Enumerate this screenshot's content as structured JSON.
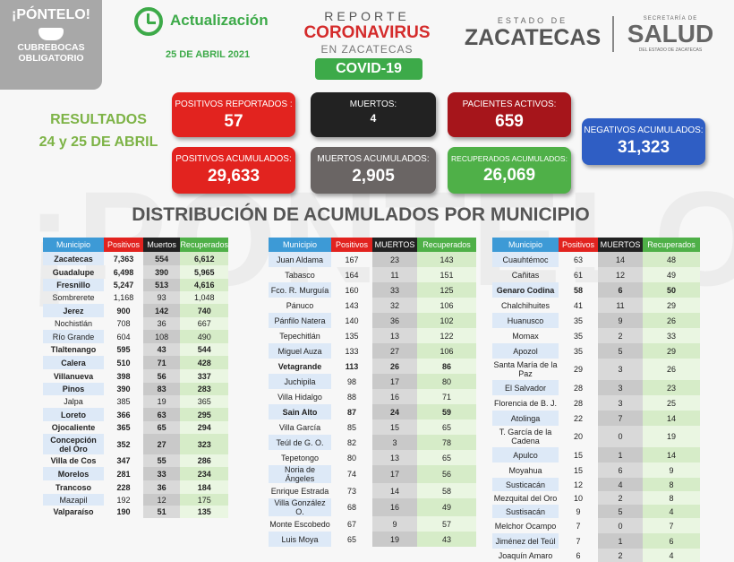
{
  "badge": {
    "line1": "¡PÓNTELO!",
    "line2": "CUBREBOCAS",
    "line3": "OBLIGATORIO"
  },
  "watermark": "¡PÓNTELO!",
  "update": {
    "label": "Actualización",
    "date": "25 DE ABRIL 2021"
  },
  "report": {
    "line1": "REPORTE",
    "line2": "CORONAVIRUS",
    "line3": "EN ZACATECAS",
    "tag": "COVID-19"
  },
  "logos": {
    "estado_top": "ESTADO DE",
    "estado_main": "ZACATECAS",
    "salud_top": "SECRETARÍA DE",
    "salud_main": "SALUD",
    "salud_bottom": "DEL ESTADO DE ZACATECAS"
  },
  "results": {
    "line1": "RESULTADOS",
    "line2": "24 y 25 DE ABRIL"
  },
  "kpis": {
    "positivos_reportados": {
      "label": "POSITIVOS REPORTADOS  :",
      "value": "57",
      "color": "#e2231f"
    },
    "muertos": {
      "label": "MUERTOS:",
      "value": "4",
      "color": "#222222"
    },
    "pacientes_activos": {
      "label": "PACIENTES ACTIVOS:",
      "value": "659",
      "color": "#a6151b"
    },
    "negativos_acumulados": {
      "label": "NEGATIVOS ACUMULADOS:",
      "value": "31,323",
      "color": "#2f5ec4"
    },
    "positivos_acumulados": {
      "label": "POSITIVOS ACUMULADOS:",
      "value": "29,633",
      "color": "#e2231f"
    },
    "muertos_acumulados": {
      "label": "MUERTOS ACUMULADOS:",
      "value": "2,905",
      "color": "#6a6564"
    },
    "recuperados_acumulados": {
      "label": "RECUPERADOS ACUMULADOS:",
      "value": "26,069",
      "color": "#4fb048"
    }
  },
  "section_title": "DISTRIBUCIÓN DE ACUMULADOS POR MUNICIPIO",
  "table_headers": [
    "Municipio",
    "Positivos",
    "Muertos",
    "Recuperados"
  ],
  "table_headers_mid": [
    "Municipio",
    "Positivos",
    "MUERTOS",
    "Recuperados"
  ],
  "table_headers_right": [
    "Municipio",
    "Positivos",
    "MUERTOS",
    "Recuperados"
  ],
  "table_left": [
    [
      "Zacatecas",
      "7,363",
      "554",
      "6,612"
    ],
    [
      "Guadalupe",
      "6,498",
      "390",
      "5,965"
    ],
    [
      "Fresnillo",
      "5,247",
      "513",
      "4,616"
    ],
    [
      "Sombrerete",
      "1,168",
      "93",
      "1,048"
    ],
    [
      "Jerez",
      "900",
      "142",
      "740"
    ],
    [
      "Nochistlán",
      "708",
      "36",
      "667"
    ],
    [
      "Río Grande",
      "604",
      "108",
      "490"
    ],
    [
      "Tlaltenango",
      "595",
      "43",
      "544"
    ],
    [
      "Calera",
      "510",
      "71",
      "428"
    ],
    [
      "Villanueva",
      "398",
      "56",
      "337"
    ],
    [
      "Pinos",
      "390",
      "83",
      "283"
    ],
    [
      "Jalpa",
      "385",
      "19",
      "365"
    ],
    [
      "Loreto",
      "366",
      "63",
      "295"
    ],
    [
      "Ojocaliente",
      "365",
      "65",
      "294"
    ],
    [
      "Concepción del Oro",
      "352",
      "27",
      "323"
    ],
    [
      "Villa de Cos",
      "347",
      "55",
      "286"
    ],
    [
      "Morelos",
      "281",
      "33",
      "234"
    ],
    [
      "Trancoso",
      "228",
      "36",
      "184"
    ],
    [
      "Mazapil",
      "192",
      "12",
      "175"
    ],
    [
      "Valparaíso",
      "190",
      "51",
      "135"
    ]
  ],
  "table_mid": [
    [
      "Juan Aldama",
      "167",
      "23",
      "143"
    ],
    [
      "Tabasco",
      "164",
      "11",
      "151"
    ],
    [
      "Fco. R. Murguía",
      "160",
      "33",
      "125"
    ],
    [
      "Pánuco",
      "143",
      "32",
      "106"
    ],
    [
      "Pánfilo Natera",
      "140",
      "36",
      "102"
    ],
    [
      "Tepechitlán",
      "135",
      "13",
      "122"
    ],
    [
      "Miguel Auza",
      "133",
      "27",
      "106"
    ],
    [
      "Vetagrande",
      "113",
      "26",
      "86"
    ],
    [
      "Juchipila",
      "98",
      "17",
      "80"
    ],
    [
      "Villa Hidalgo",
      "88",
      "16",
      "71"
    ],
    [
      "Sain Alto",
      "87",
      "24",
      "59"
    ],
    [
      "Villa García",
      "85",
      "15",
      "65"
    ],
    [
      "Teúl de G. O.",
      "82",
      "3",
      "78"
    ],
    [
      "Tepetongo",
      "80",
      "13",
      "65"
    ],
    [
      "Noria de Ángeles",
      "74",
      "17",
      "56"
    ],
    [
      "Enrique Estrada",
      "73",
      "14",
      "58"
    ],
    [
      "Villa González O.",
      "68",
      "16",
      "49"
    ],
    [
      "Monte Escobedo",
      "67",
      "9",
      "57"
    ],
    [
      "Luis Moya",
      "65",
      "19",
      "43"
    ]
  ],
  "table_right": [
    [
      "Cuauhtémoc",
      "63",
      "14",
      "48"
    ],
    [
      "Cañitas",
      "61",
      "12",
      "49"
    ],
    [
      "Genaro Codina",
      "58",
      "6",
      "50"
    ],
    [
      "Chalchihuites",
      "41",
      "11",
      "29"
    ],
    [
      "Huanusco",
      "35",
      "9",
      "26"
    ],
    [
      "Momax",
      "35",
      "2",
      "33"
    ],
    [
      "Apozol",
      "35",
      "5",
      "29"
    ],
    [
      "Santa María de la Paz",
      "29",
      "3",
      "26"
    ],
    [
      "El Salvador",
      "28",
      "3",
      "23"
    ],
    [
      "Florencia de B. J.",
      "28",
      "3",
      "25"
    ],
    [
      "Atolinga",
      "22",
      "7",
      "14"
    ],
    [
      "T. García de la Cadena",
      "20",
      "0",
      "19"
    ],
    [
      "Apulco",
      "15",
      "1",
      "14"
    ],
    [
      "Moyahua",
      "15",
      "6",
      "9"
    ],
    [
      "Susticacán",
      "12",
      "4",
      "8"
    ],
    [
      "Mezquital del Oro",
      "10",
      "2",
      "8"
    ],
    [
      "Sustisacán",
      "9",
      "5",
      "4"
    ],
    [
      "Melchor Ocampo",
      "7",
      "0",
      "7"
    ],
    [
      "Jiménez del Teúl",
      "7",
      "1",
      "6"
    ],
    [
      "Joaquín Amaro",
      "6",
      "2",
      "4"
    ]
  ]
}
